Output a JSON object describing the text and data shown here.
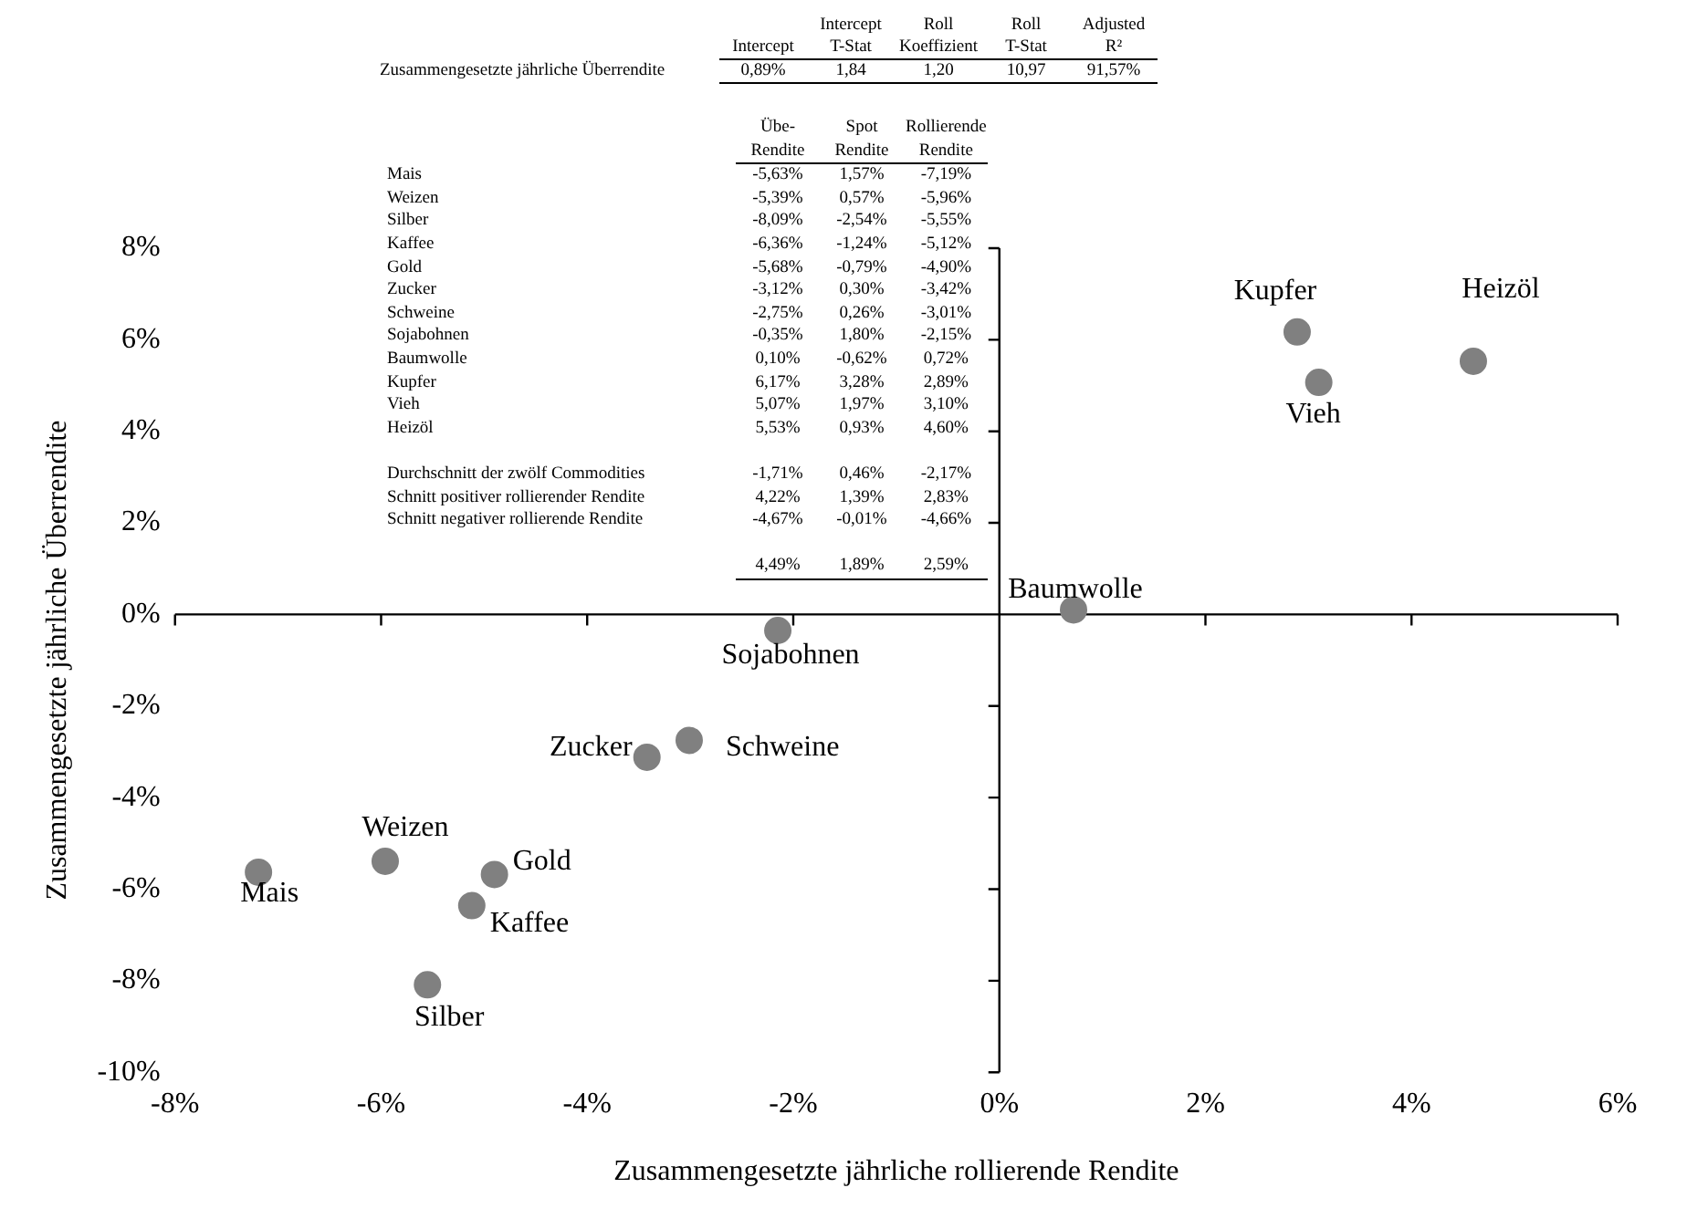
{
  "chart_data": {
    "type": "scatter",
    "xlabel": "Zusammengesetzte jährliche rollierende Rendite",
    "ylabel": "Zusammengesetzte jährliche Überrendite",
    "x": [
      -7.19,
      -5.96,
      -5.55,
      -5.12,
      -4.9,
      -3.42,
      -3.01,
      -2.15,
      0.72,
      2.89,
      3.1,
      4.6
    ],
    "series": [
      {
        "color": "#808080",
        "values": [
          -5.63,
          -5.39,
          -8.09,
          -6.36,
          -5.68,
          -3.12,
          -2.75,
          -0.35,
          0.1,
          6.17,
          5.07,
          5.53
        ]
      }
    ],
    "marker": "circle",
    "xlim": [
      -8,
      6
    ],
    "xticks": [
      {
        "value": -8,
        "label": "-8%"
      },
      {
        "value": -6,
        "label": "-6%"
      },
      {
        "value": -4,
        "label": "-4%"
      },
      {
        "value": -2,
        "label": "-2%"
      },
      {
        "value": 0,
        "label": "0%"
      },
      {
        "value": 2,
        "label": "2%"
      },
      {
        "value": 4,
        "label": "4%"
      },
      {
        "value": 6,
        "label": "6%"
      }
    ],
    "ylim": [
      -10,
      8
    ],
    "yticks": [
      {
        "value": -10,
        "label": "-10%"
      },
      {
        "value": -8,
        "label": "-8%"
      },
      {
        "value": -6,
        "label": "-6%"
      },
      {
        "value": -4,
        "label": "-4%"
      },
      {
        "value": -2,
        "label": "-2%"
      },
      {
        "value": 0,
        "label": "0%"
      },
      {
        "value": 2,
        "label": "2%"
      },
      {
        "value": 4,
        "label": "4%"
      },
      {
        "value": 6,
        "label": "6%"
      },
      {
        "value": 8,
        "label": "8%"
      }
    ],
    "annotations": [
      {
        "text": "Mais",
        "x": -7.19,
        "y": -5.63
      },
      {
        "text": "Weizen",
        "x": -5.96,
        "y": -5.39
      },
      {
        "text": "Gold",
        "x": -4.9,
        "y": -5.68
      },
      {
        "text": "Kaffee",
        "x": -5.12,
        "y": -6.36
      },
      {
        "text": "Silber",
        "x": -5.55,
        "y": -8.09
      },
      {
        "text": "Zucker",
        "x": -3.42,
        "y": -3.12
      },
      {
        "text": "Schweine",
        "x": -3.01,
        "y": -2.75
      },
      {
        "text": "Sojabohnen",
        "x": -2.15,
        "y": -0.35
      },
      {
        "text": "Baumwolle",
        "x": 0.72,
        "y": 0.1
      },
      {
        "text": "Kupfer",
        "x": 2.89,
        "y": 6.17
      },
      {
        "text": "Vieh",
        "x": 3.1,
        "y": 5.07
      },
      {
        "text": "Heizöl",
        "x": 4.6,
        "y": 5.53
      },
      "\t\tIntercept\tRoll\tRoll\tAdjusted",
      "\tIntercept\tT-Stat\tKoeffizient\tT-Stat\tR²",
      "Zusammengesetzte jährliche Überrendite\t0,89%\t1,84\t1,20\t10,97\t91,57%",
      "\tÜbe-\tSpot\tRollierende",
      "\tRendite\tRendite\tRendite",
      "Mais\t-5,63%\t1,57%\t-7,19%",
      "Weizen\t-5,39%\t0,57%\t-5,96%",
      "Silber\t-8,09%\t-2,54%\t-5,55%",
      "Kaffee\t-6,36%\t-1,24%\t-5,12%",
      "Gold\t-5,68%\t-0,79%\t-4,90%",
      "Zucker\t-3,12%\t0,30%\t-3,42%",
      "Schweine\t-2,75%\t0,26%\t-3,01%",
      "Sojabohnen\t-0,35%\t1,80%\t-2,15%",
      "Baumwolle\t0,10%\t-0,62%\t0,72%",
      "Kupfer\t6,17%\t3,28%\t2,89%",
      "Vieh\t5,07%\t1,97%\t3,10%",
      "Heizöl\t5,53%\t0,93%\t4,60%",
      "Durchschnitt der zwölf Commodities\t-1,71%\t0,46%\t-2,17%",
      "Schnitt positiver rollierender Rendite\t4,22%\t1,39%\t2,83%",
      "Schnitt negativer rollierende Rendite\t-4,67%\t-0,01%\t-4,66%",
      "\t4,49%\t1,89%\t2,59%"
    ]
  }
}
